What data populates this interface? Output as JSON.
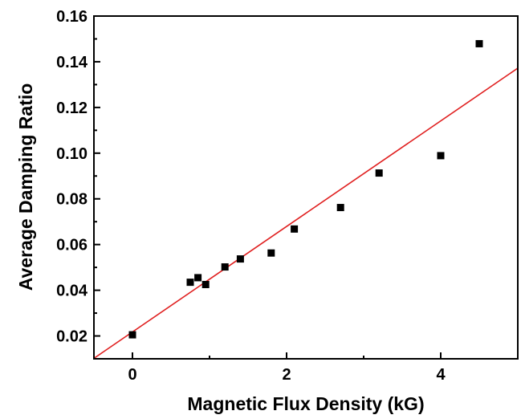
{
  "chart_data": {
    "type": "scatter",
    "title": "",
    "xlabel": "Magnetic Flux Density (kG)",
    "ylabel": "Average Damping Ratio",
    "xlim": [
      -0.5,
      5.0
    ],
    "ylim": [
      0.01,
      0.16
    ],
    "x_ticks": [
      0,
      2,
      4
    ],
    "x_tick_labels": [
      "0",
      "2",
      "4"
    ],
    "y_ticks": [
      0.02,
      0.04,
      0.06,
      0.08,
      0.1,
      0.12,
      0.14,
      0.16
    ],
    "y_tick_labels": [
      "0.02",
      "0.04",
      "0.06",
      "0.08",
      "0.10",
      "0.12",
      "0.14",
      "0.16"
    ],
    "grid": false,
    "legend": "none",
    "series": [
      {
        "type": "scatter",
        "marker": "square",
        "color": "#000000",
        "x": [
          0.0,
          0.75,
          0.85,
          0.95,
          1.2,
          1.4,
          1.8,
          2.1,
          2.7,
          3.2,
          4.0,
          4.5
        ],
        "y": [
          0.0205,
          0.0435,
          0.0455,
          0.0425,
          0.0502,
          0.0537,
          0.0563,
          0.0668,
          0.0762,
          0.0913,
          0.0989,
          0.1479
        ]
      },
      {
        "type": "line",
        "color": "#e02020",
        "x": [
          -0.5,
          5.0
        ],
        "y": [
          0.0102,
          0.1372
        ]
      }
    ]
  }
}
